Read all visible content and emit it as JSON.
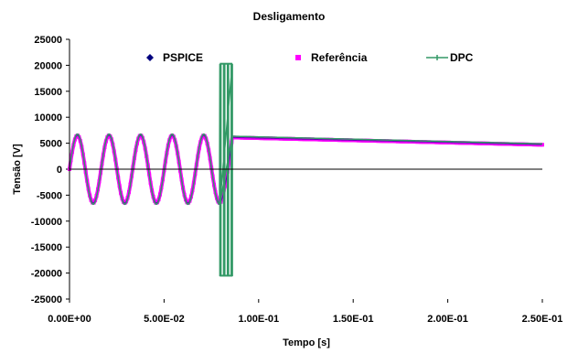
{
  "chart_data": {
    "type": "line",
    "title": "Desligamento",
    "xlabel": "Tempo [s]",
    "ylabel": "Tensão [V]",
    "xlim": [
      0,
      0.25
    ],
    "ylim": [
      -25000,
      25000
    ],
    "x_ticks": [
      0,
      0.05,
      0.1,
      0.15,
      0.2,
      0.25
    ],
    "x_tick_labels": [
      "0.00E+00",
      "5.00E-02",
      "1.00E-01",
      "1.50E-01",
      "2.00E-01",
      "2.50E-01"
    ],
    "y_ticks": [
      25000,
      20000,
      15000,
      10000,
      5000,
      0,
      -5000,
      -10000,
      -15000,
      -20000,
      -25000
    ],
    "y_tick_labels": [
      "25000",
      "20000",
      "15000",
      "10000",
      "5000",
      "0",
      "-5000",
      "-10000",
      "-15000",
      "-20000",
      "-25000"
    ],
    "grid": false,
    "legend_position": "top",
    "waveform": {
      "amplitude": 6500,
      "period": 0.0167,
      "switch_time": 0.086,
      "dc_start": 6100,
      "dc_end": 4700,
      "spike_peak": 20300,
      "spike_trough": -20500,
      "spike_times": [
        0.0795,
        0.0815,
        0.0835,
        0.0855
      ]
    },
    "series": [
      {
        "name": "PSPICE",
        "color": "#00007f",
        "marker": "diamond"
      },
      {
        "name": "Referência",
        "color": "#ff00ff",
        "marker": "square"
      },
      {
        "name": "DPC",
        "color": "#339966",
        "marker": "plus"
      }
    ]
  }
}
